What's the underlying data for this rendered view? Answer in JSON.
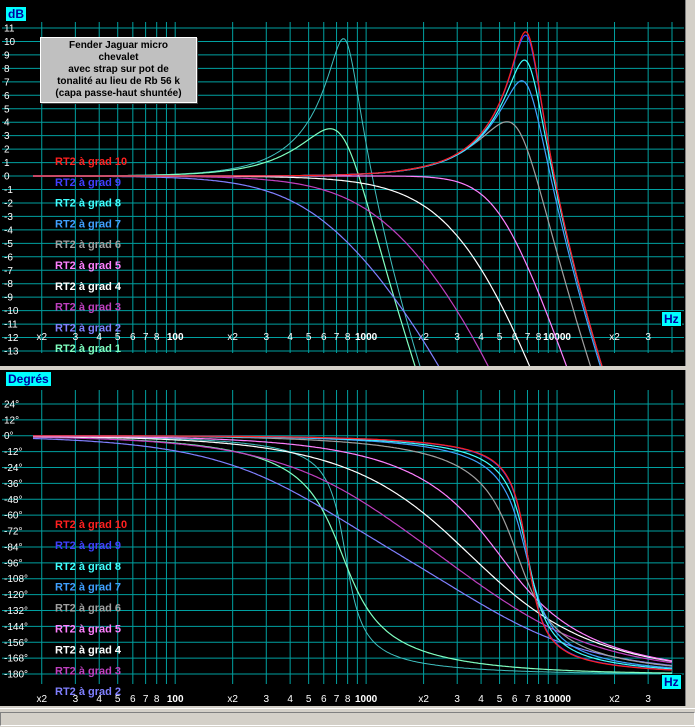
{
  "window": {
    "annotation_lines": [
      "Fender Jaguar micro",
      "chevalet",
      "avec strap sur pot de",
      "tonalité au lieu de Rb 56 k",
      "(capa passe-haut shuntée)"
    ]
  },
  "colors": {
    "background": "#000000",
    "grid": "#00a0a0",
    "axis_box_bg": "#00ffff",
    "axis_box_text": "#0000a0"
  },
  "chart_data": [
    {
      "type": "line",
      "scale_x": "log",
      "unit_y": "dB",
      "unit_x": "Hz",
      "ylim": [
        -13,
        11
      ],
      "xlim": [
        18,
        40000
      ],
      "y_ticks": [
        "11",
        "10",
        "9",
        "8",
        "7",
        "6",
        "5",
        "4",
        "3",
        "2",
        "1",
        "0",
        "-1",
        "-2",
        "-3",
        "-4",
        "-5",
        "-6",
        "-7",
        "-8",
        "-9",
        "-10",
        "-11",
        "-12",
        "-13"
      ],
      "x_tick_labels": [
        {
          "f": 20,
          "t": "x2"
        },
        {
          "f": 30,
          "t": "3"
        },
        {
          "f": 40,
          "t": "4"
        },
        {
          "f": 50,
          "t": "5"
        },
        {
          "f": 60,
          "t": "6"
        },
        {
          "f": 70,
          "t": "7"
        },
        {
          "f": 80,
          "t": "8"
        },
        {
          "f": 100,
          "t": "100",
          "major": true
        },
        {
          "f": 200,
          "t": "x2"
        },
        {
          "f": 300,
          "t": "3"
        },
        {
          "f": 400,
          "t": "4"
        },
        {
          "f": 500,
          "t": "5"
        },
        {
          "f": 600,
          "t": "6"
        },
        {
          "f": 700,
          "t": "7"
        },
        {
          "f": 800,
          "t": "8"
        },
        {
          "f": 1000,
          "t": "1000",
          "major": true
        },
        {
          "f": 2000,
          "t": "x2"
        },
        {
          "f": 3000,
          "t": "3"
        },
        {
          "f": 4000,
          "t": "4"
        },
        {
          "f": 5000,
          "t": "5"
        },
        {
          "f": 6000,
          "t": "6"
        },
        {
          "f": 7000,
          "t": "7"
        },
        {
          "f": 8000,
          "t": "8"
        },
        {
          "f": 10000,
          "t": "10000",
          "major": true
        },
        {
          "f": 20000,
          "t": "x2"
        },
        {
          "f": 30000,
          "t": "3"
        }
      ],
      "series": [
        {
          "name": "RT2 à grad 10",
          "color": "#ff2020",
          "fc": 7000,
          "q": 3.4
        },
        {
          "name": "RT2 à grad 9",
          "color": "#4040ff",
          "fc": 7000,
          "q": 3.3
        },
        {
          "name": "RT2 à grad 8",
          "color": "#40ffff",
          "fc": 7000,
          "q": 2.65
        },
        {
          "name": "RT2 à grad 7",
          "color": "#40a0ff",
          "fc": 6900,
          "q": 2.2
        },
        {
          "name": "RT2 à grad 6",
          "color": "#a0a0a0",
          "fc": 6200,
          "q": 1.5
        },
        {
          "name": "RT2 à grad 5",
          "color": "#ff80ff",
          "fc": 5000,
          "q": 0.72
        },
        {
          "name": "RT2 à grad 4",
          "color": "#ffffff",
          "fc": 3500,
          "q": 0.52
        },
        {
          "name": "RT2 à grad 3",
          "color": "#c040c0",
          "fc": 2400,
          "q": 0.4
        },
        {
          "name": "RT2 à grad 2",
          "color": "#8080ff",
          "fc": 1500,
          "q": 0.33
        },
        {
          "name": "RT2 à grad 1",
          "color": "#80ffc0",
          "fc": 750,
          "q": 1.4
        }
      ],
      "extra_curves": [
        {
          "color": "#40c0c0",
          "fc": 780,
          "q": 3.2
        }
      ]
    },
    {
      "type": "line",
      "scale_x": "log",
      "unit_y": "Degrés",
      "unit_x": "Hz",
      "ylim": [
        -186,
        30
      ],
      "xlim": [
        18,
        40000
      ],
      "y_ticks": [
        "24°",
        "12°",
        "0°",
        "-12°",
        "-24°",
        "-36°",
        "-48°",
        "-60°",
        "-72°",
        "-84°",
        "-96°",
        "-108°",
        "-120°",
        "-132°",
        "-144°",
        "-156°",
        "-168°",
        "-180°"
      ],
      "series_labels": [
        "RT2 à grad 10",
        "RT2 à grad 9",
        "RT2 à grad 8",
        "RT2 à grad 7",
        "RT2 à grad 6",
        "RT2 à grad 5",
        "RT2 à grad 4",
        "RT2 à grad 3",
        "RT2 à grad 2"
      ]
    }
  ]
}
